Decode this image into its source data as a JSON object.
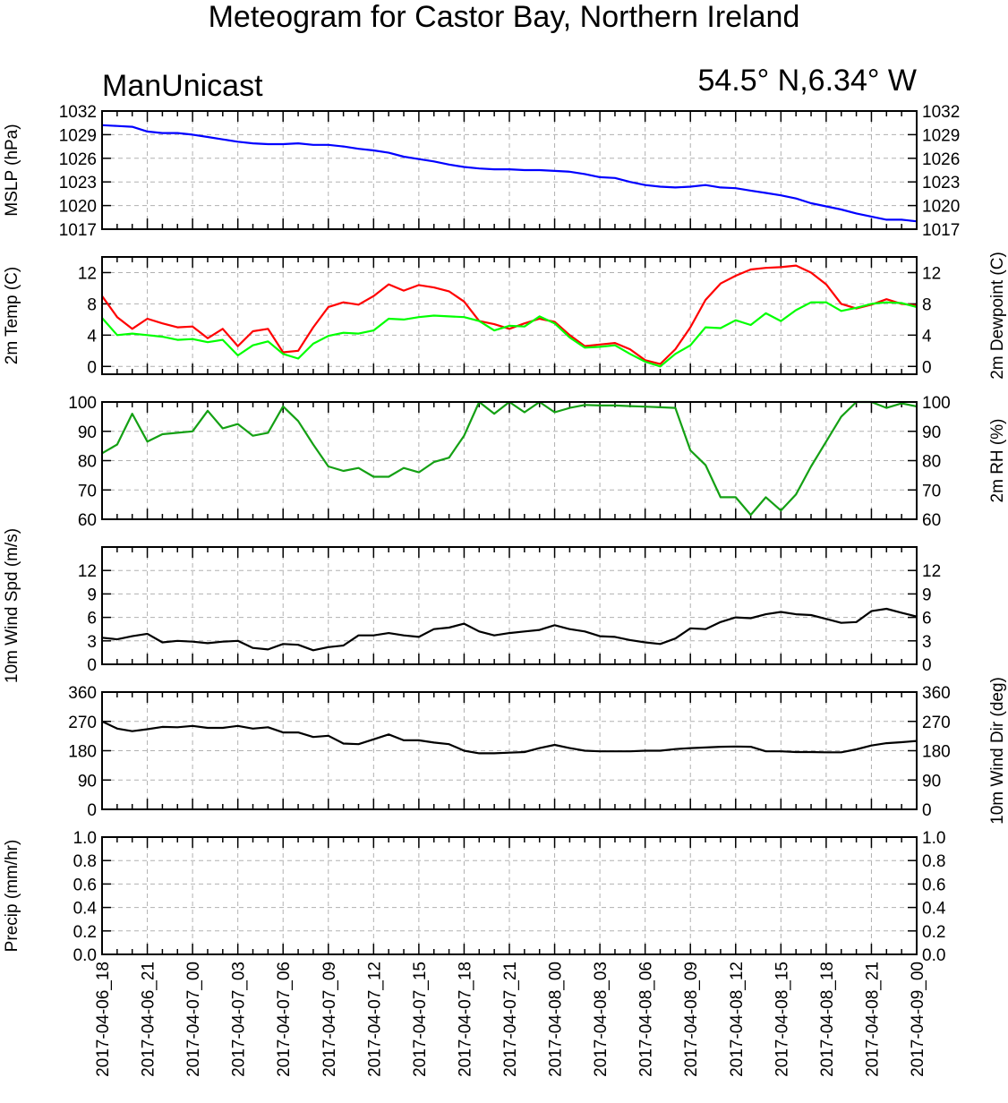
{
  "title": "Meteogram for Castor Bay, Northern Ireland",
  "model_label": "ManUnicast",
  "location_label": "54.5° N,6.34° W",
  "colors": {
    "mslp": "#0000ff",
    "temp": "#ff0000",
    "dewpoint": "#00ff00",
    "rh": "#14a014",
    "wind": "#000000",
    "grid": "#b0b0b0"
  },
  "chart_data": {
    "type": "line",
    "x_tick_labels": [
      "2017-04-06_18",
      "2017-04-06_21",
      "2017-04-07_00",
      "2017-04-07_03",
      "2017-04-07_06",
      "2017-04-07_09",
      "2017-04-07_12",
      "2017-04-07_15",
      "2017-04-07_18",
      "2017-04-07_21",
      "2017-04-08_00",
      "2017-04-08_03",
      "2017-04-08_06",
      "2017-04-08_09",
      "2017-04-08_12",
      "2017-04-08_15",
      "2017-04-08_18",
      "2017-04-08_21",
      "2017-04-09_00"
    ],
    "x_hours": [
      0,
      1,
      2,
      3,
      4,
      5,
      6,
      7,
      8,
      9,
      10,
      11,
      12,
      13,
      14,
      15,
      16,
      17,
      18,
      19,
      20,
      21,
      22,
      23,
      24,
      25,
      26,
      27,
      28,
      29,
      30,
      31,
      32,
      33,
      34,
      35,
      36,
      37,
      38,
      39,
      40,
      41,
      42,
      43,
      44,
      45,
      46,
      47,
      48,
      49,
      50,
      51,
      52,
      53,
      54
    ],
    "panels": [
      {
        "id": "mslp",
        "left_label": "MSLP (hPa)",
        "right_label": "",
        "ylim": [
          1017,
          1032
        ],
        "ticks": [
          1017,
          1020,
          1023,
          1026,
          1029,
          1032
        ],
        "tick_labels": [
          "1017",
          "1020",
          "1023",
          "1026",
          "1029",
          "1032"
        ],
        "series": [
          {
            "color_key": "mslp",
            "values": [
              1030.2,
              1030.1,
              1030.0,
              1029.4,
              1029.2,
              1029.2,
              1029.0,
              1028.7,
              1028.4,
              1028.1,
              1027.9,
              1027.8,
              1027.8,
              1027.9,
              1027.7,
              1027.7,
              1027.5,
              1027.2,
              1027.0,
              1026.7,
              1026.2,
              1025.9,
              1025.6,
              1025.2,
              1024.9,
              1024.7,
              1024.6,
              1024.6,
              1024.5,
              1024.5,
              1024.4,
              1024.3,
              1024.0,
              1023.6,
              1023.5,
              1023.0,
              1022.6,
              1022.4,
              1022.3,
              1022.4,
              1022.6,
              1022.3,
              1022.2,
              1021.9,
              1021.6,
              1021.3,
              1020.9,
              1020.3,
              1019.9,
              1019.5,
              1019.0,
              1018.6,
              1018.2,
              1018.2,
              1018.0
            ]
          }
        ]
      },
      {
        "id": "temp",
        "left_label": "2m Temp (C)",
        "right_label": "2m Dewpoint (C)",
        "ylim": [
          -1,
          14
        ],
        "ticks": [
          0,
          4,
          8,
          12
        ],
        "tick_labels": [
          "0",
          "4",
          "8",
          "12"
        ],
        "series": [
          {
            "color_key": "temp",
            "values": [
              9.0,
              6.3,
              4.8,
              6.1,
              5.5,
              5.0,
              5.1,
              3.6,
              4.8,
              2.6,
              4.5,
              4.8,
              1.8,
              2.0,
              5.0,
              7.6,
              8.2,
              7.9,
              9.0,
              10.5,
              9.7,
              10.4,
              10.1,
              9.6,
              8.3,
              5.8,
              5.4,
              4.8,
              5.5,
              6.1,
              5.7,
              4.0,
              2.6,
              2.8,
              3.0,
              2.2,
              0.8,
              0.3,
              2.2,
              5.0,
              8.5,
              10.6,
              11.6,
              12.4,
              12.6,
              12.7,
              12.9,
              12.0,
              10.5,
              8.0,
              7.4,
              7.9,
              8.6,
              8.0,
              7.8
            ]
          },
          {
            "color_key": "dewpoint",
            "values": [
              6.2,
              4.0,
              4.2,
              4.0,
              3.8,
              3.4,
              3.5,
              3.1,
              3.4,
              1.4,
              2.7,
              3.2,
              1.6,
              1.0,
              2.9,
              3.9,
              4.3,
              4.2,
              4.6,
              6.1,
              6.0,
              6.3,
              6.5,
              6.4,
              6.3,
              5.8,
              4.6,
              5.2,
              5.1,
              6.4,
              5.5,
              3.7,
              2.4,
              2.5,
              2.7,
              1.6,
              0.6,
              0.0,
              1.6,
              2.7,
              5.0,
              4.9,
              5.9,
              5.3,
              6.8,
              5.8,
              7.2,
              8.2,
              8.2,
              7.1,
              7.5,
              8.0,
              8.2,
              8.1,
              7.6
            ]
          }
        ]
      },
      {
        "id": "rh",
        "left_label": "",
        "right_label": "2m RH (%)",
        "ylim": [
          60,
          100
        ],
        "ticks": [
          60,
          70,
          80,
          90,
          100
        ],
        "tick_labels": [
          "60",
          "70",
          "80",
          "90",
          "100"
        ],
        "series": [
          {
            "color_key": "rh",
            "values": [
              82.5,
              85.5,
              96.0,
              86.5,
              89.0,
              89.5,
              90.0,
              97.0,
              91.0,
              92.5,
              88.5,
              89.5,
              98.5,
              93.5,
              85.5,
              78.0,
              76.5,
              77.5,
              74.5,
              74.5,
              77.5,
              76.0,
              79.5,
              81.0,
              88.5,
              100.0,
              96.0,
              100.0,
              96.5,
              100.0,
              96.5,
              98.0,
              99.0,
              98.8,
              98.8,
              98.6,
              98.4,
              98.2,
              98.0,
              83.5,
              78.5,
              67.5,
              67.5,
              61.5,
              67.5,
              63.0,
              68.5,
              78.0,
              86.5,
              95.0,
              100.0,
              100.0,
              98.0,
              99.5,
              98.5
            ]
          }
        ]
      },
      {
        "id": "wind_speed",
        "left_label": "10m Wind Spd (m/s)",
        "right_label": "",
        "ylim": [
          0,
          15
        ],
        "ticks": [
          0,
          3,
          6,
          9,
          12
        ],
        "tick_labels": [
          "0",
          "3",
          "6",
          "9",
          "12"
        ],
        "series": [
          {
            "color_key": "wind",
            "values": [
              3.4,
              3.2,
              3.6,
              3.9,
              2.8,
              3.0,
              2.9,
              2.7,
              2.9,
              3.0,
              2.1,
              1.9,
              2.6,
              2.5,
              1.8,
              2.2,
              2.4,
              3.7,
              3.7,
              4.0,
              3.7,
              3.5,
              4.5,
              4.7,
              5.2,
              4.2,
              3.7,
              4.0,
              4.2,
              4.4,
              5.0,
              4.5,
              4.2,
              3.6,
              3.5,
              3.1,
              2.8,
              2.6,
              3.3,
              4.6,
              4.5,
              5.4,
              6.0,
              5.9,
              6.4,
              6.7,
              6.4,
              6.3,
              5.8,
              5.3,
              5.4,
              6.8,
              7.1,
              6.6,
              6.1
            ]
          }
        ]
      },
      {
        "id": "wind_dir",
        "left_label": "",
        "right_label": "10m Wind Dir (deg)",
        "ylim": [
          0,
          360
        ],
        "ticks": [
          0,
          90,
          180,
          270,
          360
        ],
        "tick_labels": [
          "0",
          "90",
          "180",
          "270",
          "360"
        ],
        "series": [
          {
            "color_key": "wind",
            "values": [
              270,
              248,
              240,
              246,
              253,
              252,
              256,
              250,
              250,
              256,
              248,
              252,
              236,
              236,
              222,
              226,
              202,
              200,
              215,
              230,
              212,
              212,
              205,
              200,
              180,
              172,
              172,
              174,
              176,
              188,
              198,
              188,
              180,
              178,
              178,
              178,
              180,
              180,
              185,
              188,
              190,
              192,
              193,
              192,
              178,
              178,
              176,
              176,
              175,
              175,
              184,
              196,
              203,
              206,
              210
            ]
          }
        ]
      },
      {
        "id": "precip",
        "left_label": "Precip (mm/hr)",
        "right_label": "",
        "ylim": [
          0,
          1
        ],
        "ticks": [
          0,
          0.2,
          0.4,
          0.6,
          0.8,
          1.0
        ],
        "tick_labels": [
          "0.0",
          "0.2",
          "0.4",
          "0.6",
          "0.8",
          "1.0"
        ],
        "series": []
      }
    ]
  }
}
